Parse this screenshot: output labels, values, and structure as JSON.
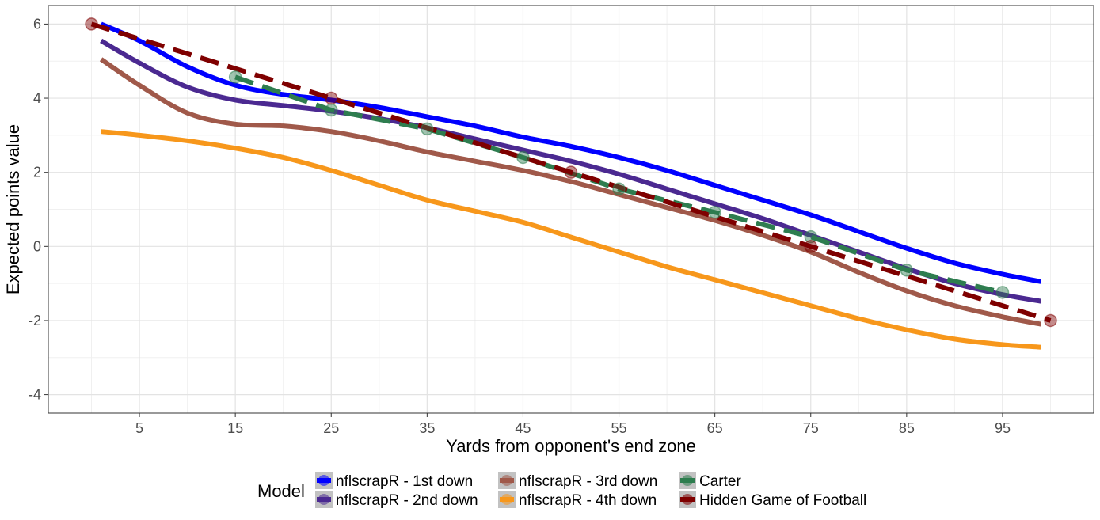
{
  "chart_data": {
    "type": "line",
    "xlabel": "Yards from opponent's end zone",
    "ylabel": "Expected points value",
    "xlim": [
      -4.5,
      104.5
    ],
    "ylim": [
      -4.5,
      6.5
    ],
    "x_ticks": [
      5,
      15,
      25,
      35,
      45,
      55,
      65,
      75,
      85,
      95
    ],
    "y_ticks": [
      -4,
      -2,
      0,
      2,
      4,
      6
    ],
    "grid": true,
    "legend": {
      "title": "Model",
      "placement": "bottom",
      "entries": [
        "nflscrapR - 1st down",
        "nflscrapR - 2nd down",
        "nflscrapR - 3rd down",
        "nflscrapR - 4th down",
        "Carter",
        "Hidden Game of Football"
      ]
    },
    "series": [
      {
        "name": "nflscrapR - 1st down",
        "color": "#0000ff",
        "style": "solid",
        "x": [
          1,
          5,
          10,
          15,
          20,
          25,
          30,
          35,
          40,
          45,
          50,
          55,
          60,
          65,
          70,
          75,
          80,
          85,
          90,
          95,
          99
        ],
        "y": [
          6.0,
          5.55,
          4.85,
          4.35,
          4.1,
          3.95,
          3.75,
          3.5,
          3.25,
          2.95,
          2.7,
          2.4,
          2.05,
          1.65,
          1.25,
          0.85,
          0.4,
          -0.05,
          -0.45,
          -0.75,
          -0.95
        ]
      },
      {
        "name": "nflscrapR - 2nd down",
        "color": "#4b2991",
        "style": "solid",
        "x": [
          1,
          5,
          10,
          15,
          20,
          25,
          30,
          35,
          40,
          45,
          50,
          55,
          60,
          65,
          70,
          75,
          80,
          85,
          90,
          95,
          99
        ],
        "y": [
          5.55,
          4.95,
          4.3,
          3.95,
          3.8,
          3.65,
          3.45,
          3.2,
          2.9,
          2.6,
          2.3,
          1.95,
          1.55,
          1.15,
          0.75,
          0.3,
          -0.15,
          -0.6,
          -1.0,
          -1.3,
          -1.48
        ]
      },
      {
        "name": "nflscrapR - 3rd down",
        "color": "#a0594a",
        "style": "solid",
        "x": [
          1,
          5,
          10,
          15,
          20,
          25,
          30,
          35,
          40,
          45,
          50,
          55,
          60,
          65,
          70,
          75,
          80,
          85,
          90,
          95,
          99
        ],
        "y": [
          5.05,
          4.35,
          3.6,
          3.3,
          3.25,
          3.1,
          2.85,
          2.55,
          2.3,
          2.05,
          1.75,
          1.4,
          1.05,
          0.7,
          0.3,
          -0.15,
          -0.7,
          -1.2,
          -1.6,
          -1.9,
          -2.1
        ]
      },
      {
        "name": "nflscrapR - 4th down",
        "color": "#f7971b",
        "style": "solid",
        "x": [
          1,
          5,
          10,
          15,
          20,
          25,
          30,
          35,
          40,
          45,
          50,
          55,
          60,
          65,
          70,
          75,
          80,
          85,
          90,
          95,
          99
        ],
        "y": [
          3.1,
          3.0,
          2.85,
          2.65,
          2.4,
          2.05,
          1.65,
          1.25,
          0.95,
          0.65,
          0.25,
          -0.15,
          -0.55,
          -0.9,
          -1.25,
          -1.6,
          -1.95,
          -2.25,
          -2.5,
          -2.65,
          -2.72
        ]
      },
      {
        "name": "Carter",
        "color": "#2e7d4f",
        "style": "dashed",
        "markers": true,
        "x": [
          15,
          25,
          35,
          45,
          55,
          65,
          75,
          85,
          95
        ],
        "y": [
          4.57,
          3.68,
          3.17,
          2.4,
          1.55,
          0.92,
          0.26,
          -0.64,
          -1.24
        ]
      },
      {
        "name": "Hidden Game of Football",
        "color": "#7f0000",
        "style": "dashed",
        "markers": true,
        "x": [
          0,
          25,
          50,
          75,
          100
        ],
        "y": [
          6,
          4,
          2,
          0,
          -2
        ]
      }
    ]
  }
}
